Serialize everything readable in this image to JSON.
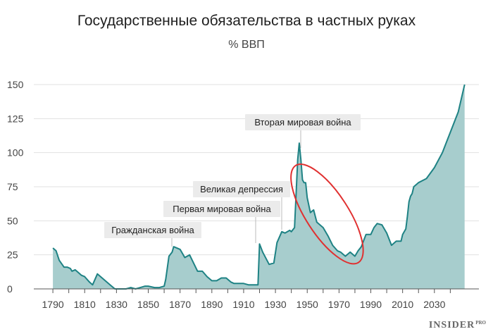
{
  "chart_data": {
    "type": "area",
    "title": "Государственные обязательства в частных руках",
    "subtitle": "% ВВП",
    "xlim": [
      1778,
      2058
    ],
    "ylim": [
      0,
      150
    ],
    "y_ticks": [
      0,
      25,
      50,
      75,
      100,
      125,
      150
    ],
    "x_ticks": [
      1790,
      1810,
      1830,
      1850,
      1870,
      1890,
      1910,
      1930,
      1950,
      1970,
      1990,
      2010,
      2030
    ],
    "grid": true,
    "fill_color": "#a7cdcd",
    "line_color": "#1e8284",
    "series": [
      {
        "x": [
          1790,
          1792,
          1794,
          1797,
          1799,
          1801,
          1802,
          1804,
          1806,
          1808,
          1810,
          1813,
          1815,
          1818,
          1820,
          1822,
          1826,
          1829,
          1831,
          1833,
          1836,
          1839,
          1842,
          1845,
          1848,
          1850,
          1854,
          1857,
          1860,
          1861,
          1863,
          1865,
          1866,
          1870,
          1873,
          1876,
          1881,
          1884,
          1887,
          1890,
          1893,
          1896,
          1899,
          1902,
          1904,
          1907,
          1910,
          1913,
          1914,
          1917,
          1919,
          1920,
          1922,
          1926,
          1929,
          1931,
          1934,
          1936,
          1939,
          1940,
          1942,
          1944,
          1945,
          1946,
          1947,
          1948,
          1949,
          1950,
          1952,
          1954,
          1956,
          1960,
          1963,
          1966,
          1969,
          1971,
          1974,
          1977,
          1980,
          1982,
          1984,
          1987,
          1990,
          1992,
          1994,
          1997,
          2000,
          2003,
          2006,
          2009,
          2010,
          2012,
          2013,
          2014,
          2015,
          2016,
          2017,
          2020,
          2025,
          2030,
          2035,
          2040,
          2045,
          2049
        ],
        "y": [
          30,
          28,
          21,
          16,
          16,
          15,
          13,
          14,
          12,
          10,
          9,
          5,
          3,
          11,
          9,
          7,
          3,
          0,
          0,
          0,
          0,
          1,
          0,
          1,
          2,
          2,
          1,
          1,
          2,
          7,
          24,
          27,
          31,
          29,
          23,
          25,
          13,
          13,
          9,
          6,
          6,
          8,
          8,
          5,
          4,
          4,
          4,
          3,
          3,
          3,
          3,
          33,
          27,
          18,
          19,
          34,
          42,
          41,
          43,
          42,
          45,
          95,
          107,
          95,
          80,
          78,
          78,
          67,
          56,
          58,
          49,
          45,
          39,
          32,
          28,
          27,
          24,
          27,
          24,
          28,
          31,
          40,
          40,
          45,
          48,
          47,
          41,
          32,
          35,
          35,
          40,
          44,
          53,
          64,
          68,
          70,
          75,
          78,
          81,
          89,
          100,
          115,
          130,
          150
        ]
      }
    ],
    "annotations": [
      {
        "label": "Гражданская война",
        "year": 1863
      },
      {
        "label": "Первая мировая война",
        "year": 1917
      },
      {
        "label": "Великая депрессия",
        "year": 1933
      },
      {
        "label": "Вторая мировая война",
        "year": 1945
      }
    ],
    "highlight": {
      "shape": "ellipse",
      "color": "#e03030",
      "around_years": [
        1945,
        1980
      ]
    }
  },
  "brand": {
    "name": "INSIDER",
    "suffix": "PRO"
  }
}
